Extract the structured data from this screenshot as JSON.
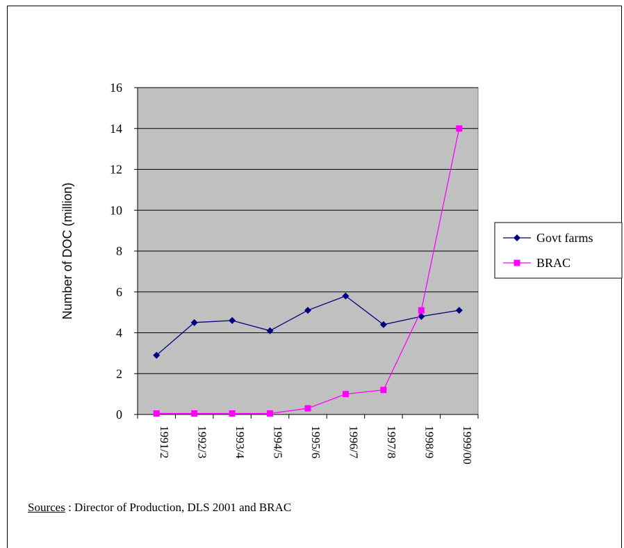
{
  "chart_data": {
    "type": "line",
    "categories": [
      "1991/2",
      "1992/3",
      "1993/4",
      "1994/5",
      "1995/6",
      "1996/7",
      "1997/8",
      "1998/9",
      "1999/00"
    ],
    "series": [
      {
        "name": "Govt farms",
        "values": [
          2.9,
          4.5,
          4.6,
          4.1,
          5.1,
          5.8,
          4.4,
          4.8,
          5.1
        ],
        "color": "#000080",
        "marker": "diamond"
      },
      {
        "name": "BRAC",
        "values": [
          0.05,
          0.05,
          0.05,
          0.05,
          0.3,
          1.0,
          1.2,
          5.1,
          14.0
        ],
        "color": "#ff00ff",
        "marker": "square"
      }
    ],
    "ylabel": "Number of DOC (million)",
    "ylim": [
      0,
      16
    ],
    "yticks": [
      0,
      2,
      4,
      6,
      8,
      10,
      12,
      14,
      16
    ],
    "grid": true,
    "legend_position": "right",
    "plot_background": "#c0c0c0"
  },
  "source": {
    "label": "Sources",
    "text": " : Director of Production, DLS 2001 and BRAC"
  }
}
